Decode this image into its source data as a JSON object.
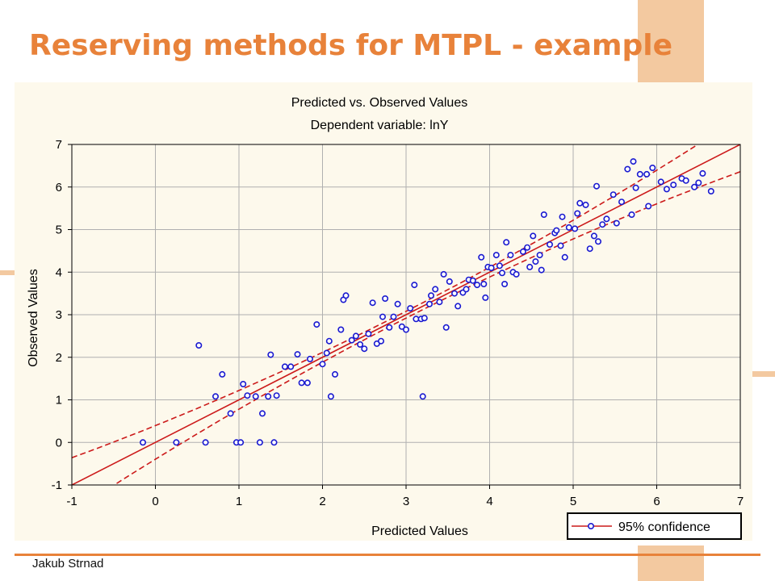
{
  "slide": {
    "title": "Reserving methods for MTPL - example",
    "author": "Jakub Strnad",
    "accent_color": "#e8823a",
    "decor_color": "#f3c9a0"
  },
  "chart_data": {
    "type": "scatter",
    "title": "Predicted vs. Observed Values",
    "subtitle": "Dependent variable: lnY",
    "xlabel": "Predicted Values",
    "ylabel": "Observed Values",
    "xlim": [
      -1,
      7
    ],
    "ylim": [
      -1,
      7
    ],
    "xticks": [
      "-1",
      "0",
      "1",
      "2",
      "3",
      "4",
      "5",
      "6",
      "7"
    ],
    "yticks": [
      "-1",
      "0",
      "1",
      "2",
      "3",
      "4",
      "5",
      "6",
      "7"
    ],
    "grid": true,
    "legend": {
      "position": "bottom-right",
      "label": "95% confidence"
    },
    "colors": {
      "points": "#1a1ad0",
      "fit": "#cc1a1a",
      "grid": "#b0b0b0"
    },
    "fit_line": {
      "slope": 1.0,
      "intercept": 0.0
    },
    "confidence_band": {
      "half_width_at_mean": 0.08,
      "growth": 0.035,
      "center_x": 3.0
    },
    "points": [
      [
        -0.15,
        0.0
      ],
      [
        0.25,
        0.0
      ],
      [
        0.6,
        0.0
      ],
      [
        0.97,
        0.0
      ],
      [
        1.02,
        0.0
      ],
      [
        1.25,
        0.0
      ],
      [
        1.42,
        0.0
      ],
      [
        0.52,
        2.28
      ],
      [
        0.72,
        1.08
      ],
      [
        0.8,
        1.6
      ],
      [
        0.9,
        0.68
      ],
      [
        1.05,
        1.37
      ],
      [
        1.1,
        1.1
      ],
      [
        1.2,
        1.08
      ],
      [
        1.28,
        0.68
      ],
      [
        1.35,
        1.08
      ],
      [
        1.38,
        2.06
      ],
      [
        1.45,
        1.1
      ],
      [
        1.55,
        1.78
      ],
      [
        1.62,
        1.78
      ],
      [
        1.7,
        2.07
      ],
      [
        1.75,
        1.4
      ],
      [
        1.82,
        1.4
      ],
      [
        1.85,
        1.96
      ],
      [
        1.93,
        2.77
      ],
      [
        2.0,
        1.84
      ],
      [
        2.05,
        2.1
      ],
      [
        2.08,
        2.38
      ],
      [
        2.1,
        1.08
      ],
      [
        2.15,
        1.6
      ],
      [
        2.22,
        2.65
      ],
      [
        2.25,
        3.35
      ],
      [
        2.28,
        3.45
      ],
      [
        2.35,
        2.4
      ],
      [
        2.4,
        2.5
      ],
      [
        2.45,
        2.3
      ],
      [
        2.5,
        2.2
      ],
      [
        2.55,
        2.55
      ],
      [
        2.6,
        3.28
      ],
      [
        2.65,
        2.32
      ],
      [
        2.7,
        2.38
      ],
      [
        2.72,
        2.95
      ],
      [
        2.75,
        3.38
      ],
      [
        2.8,
        2.7
      ],
      [
        2.85,
        2.95
      ],
      [
        2.9,
        3.25
      ],
      [
        2.95,
        2.72
      ],
      [
        3.0,
        2.65
      ],
      [
        3.05,
        3.15
      ],
      [
        3.1,
        3.7
      ],
      [
        3.12,
        2.9
      ],
      [
        3.18,
        2.9
      ],
      [
        3.2,
        1.08
      ],
      [
        3.22,
        2.92
      ],
      [
        3.28,
        3.25
      ],
      [
        3.3,
        3.45
      ],
      [
        3.35,
        3.6
      ],
      [
        3.4,
        3.3
      ],
      [
        3.45,
        3.95
      ],
      [
        3.48,
        2.7
      ],
      [
        3.52,
        3.78
      ],
      [
        3.58,
        3.5
      ],
      [
        3.62,
        3.2
      ],
      [
        3.68,
        3.52
      ],
      [
        3.72,
        3.6
      ],
      [
        3.75,
        3.82
      ],
      [
        3.8,
        3.8
      ],
      [
        3.85,
        3.7
      ],
      [
        3.9,
        4.35
      ],
      [
        3.93,
        3.72
      ],
      [
        3.95,
        3.4
      ],
      [
        3.98,
        4.12
      ],
      [
        4.02,
        4.1
      ],
      [
        4.08,
        4.4
      ],
      [
        4.12,
        4.15
      ],
      [
        4.15,
        3.98
      ],
      [
        4.18,
        3.72
      ],
      [
        4.2,
        4.7
      ],
      [
        4.25,
        4.4
      ],
      [
        4.28,
        4.0
      ],
      [
        4.32,
        3.95
      ],
      [
        4.4,
        4.48
      ],
      [
        4.45,
        4.58
      ],
      [
        4.48,
        4.12
      ],
      [
        4.52,
        4.85
      ],
      [
        4.55,
        4.25
      ],
      [
        4.6,
        4.4
      ],
      [
        4.62,
        4.05
      ],
      [
        4.65,
        5.35
      ],
      [
        4.72,
        4.65
      ],
      [
        4.78,
        4.92
      ],
      [
        4.8,
        4.98
      ],
      [
        4.85,
        4.62
      ],
      [
        4.87,
        5.3
      ],
      [
        4.9,
        4.35
      ],
      [
        4.95,
        5.05
      ],
      [
        5.02,
        5.02
      ],
      [
        5.05,
        5.38
      ],
      [
        5.08,
        5.62
      ],
      [
        5.15,
        5.58
      ],
      [
        5.2,
        4.55
      ],
      [
        5.25,
        4.85
      ],
      [
        5.28,
        6.02
      ],
      [
        5.3,
        4.72
      ],
      [
        5.35,
        5.12
      ],
      [
        5.4,
        5.25
      ],
      [
        5.48,
        5.82
      ],
      [
        5.52,
        5.15
      ],
      [
        5.58,
        5.65
      ],
      [
        5.65,
        6.42
      ],
      [
        5.7,
        5.35
      ],
      [
        5.72,
        6.6
      ],
      [
        5.75,
        5.98
      ],
      [
        5.8,
        6.3
      ],
      [
        5.88,
        6.3
      ],
      [
        5.9,
        5.55
      ],
      [
        5.95,
        6.45
      ],
      [
        6.05,
        6.12
      ],
      [
        6.12,
        5.95
      ],
      [
        6.2,
        6.05
      ],
      [
        6.3,
        6.2
      ],
      [
        6.35,
        6.15
      ],
      [
        6.45,
        6.0
      ],
      [
        6.5,
        6.1
      ],
      [
        6.55,
        6.32
      ],
      [
        6.65,
        5.9
      ]
    ]
  }
}
